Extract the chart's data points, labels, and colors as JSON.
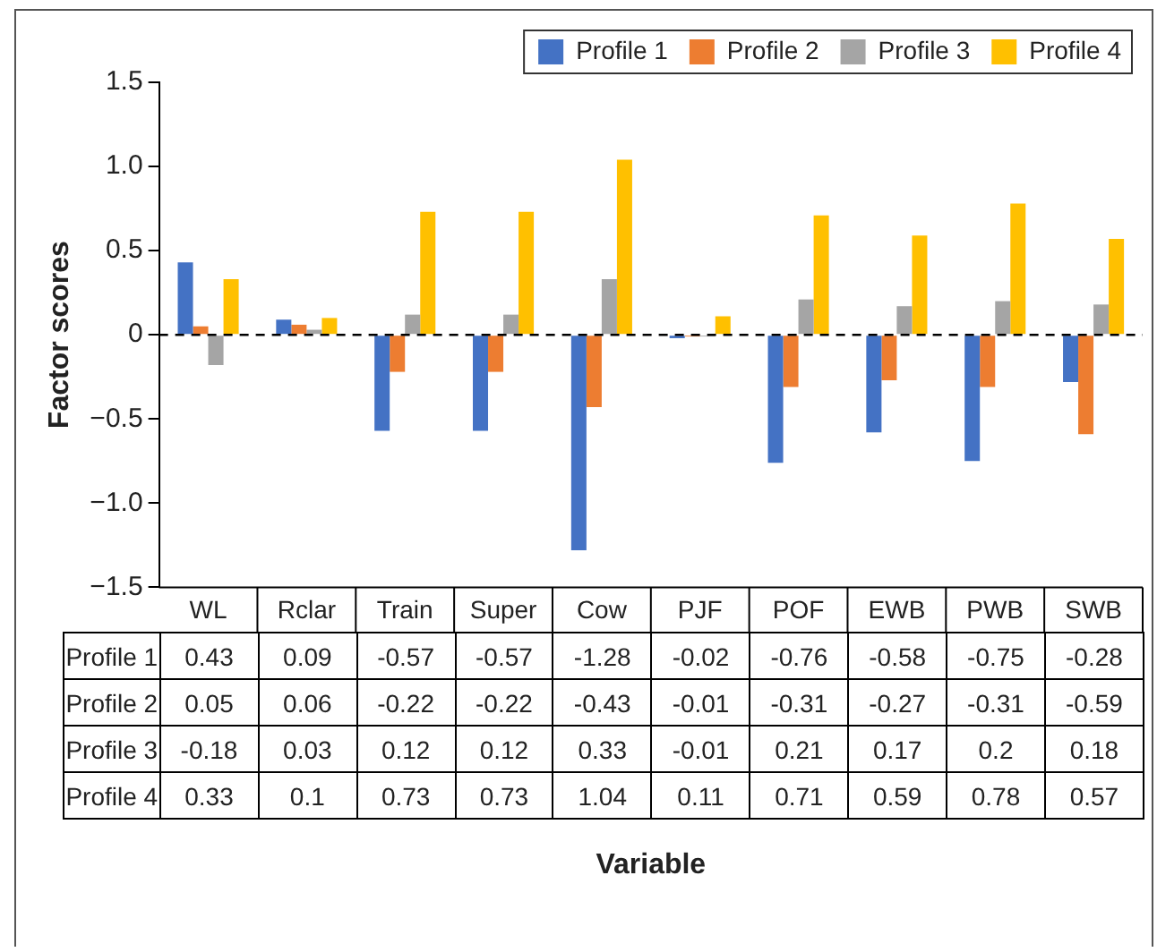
{
  "chart_data": {
    "type": "bar",
    "annotations": [
      "Variable"
    ],
    "ylabel": "Factor scores",
    "categories": [
      "WL",
      "Rclar",
      "Train",
      "Super",
      "Cow",
      "PJF",
      "POF",
      "EWB",
      "PWB",
      "SWB"
    ],
    "series": [
      {
        "name": "Profile 1",
        "color": "#4472c4",
        "values": [
          0.43,
          0.09,
          -0.57,
          -0.57,
          -1.28,
          -0.02,
          -0.76,
          -0.58,
          -0.75,
          -0.28
        ]
      },
      {
        "name": "Profile 2",
        "color": "#ed7d31",
        "values": [
          0.05,
          0.06,
          -0.22,
          -0.22,
          -0.43,
          -0.01,
          -0.31,
          -0.27,
          -0.31,
          -0.59
        ]
      },
      {
        "name": "Profile 3",
        "color": "#a5a5a5",
        "values": [
          -0.18,
          0.03,
          0.12,
          0.12,
          0.33,
          -0.01,
          0.21,
          0.17,
          0.2,
          0.18
        ]
      },
      {
        "name": "Profile 4",
        "color": "#ffc000",
        "values": [
          0.33,
          0.1,
          0.73,
          0.73,
          1.04,
          0.11,
          0.71,
          0.59,
          0.78,
          0.57
        ]
      }
    ],
    "ylim": [
      -1.5,
      1.5
    ],
    "yticks": [
      {
        "value": -1.5,
        "label": "−1.5"
      },
      {
        "value": -1,
        "label": "−1.0"
      },
      {
        "value": -0.5,
        "label": "−0.5"
      },
      0,
      0.5,
      {
        "value": 1,
        "label": "1.0"
      },
      1.5
    ],
    "ref_lines": [
      {
        "axis": "y",
        "value": 0,
        "line_style": "dashed",
        "color": "#000000"
      }
    ],
    "data_labels": true,
    "grid": false,
    "legend": "top right"
  }
}
